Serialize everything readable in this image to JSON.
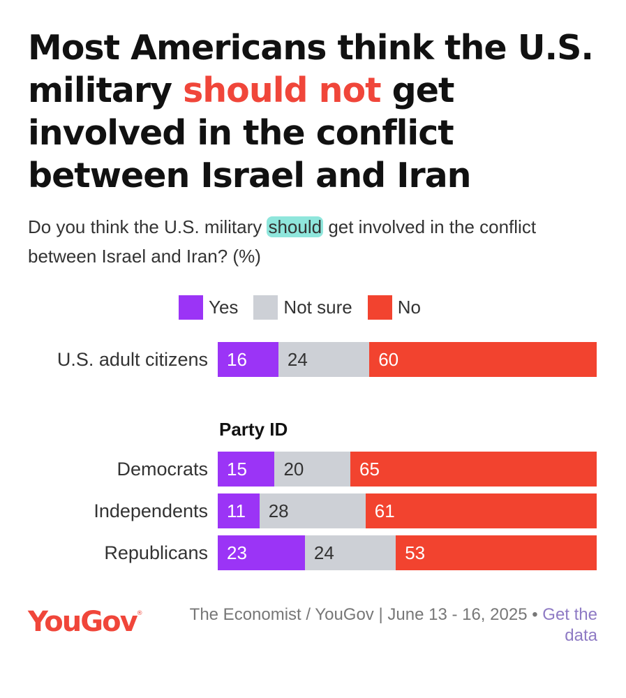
{
  "chart_data": {
    "type": "bar",
    "orientation": "horizontal",
    "stacked": true,
    "title_parts": [
      "Most Americans think the U.S. military ",
      "should not",
      " get involved in the conflict between Israel and Iran"
    ],
    "subtitle_parts": [
      "Do you think the U.S. military ",
      "should",
      " get involved in the conflict between Israel and Iran? (%)"
    ],
    "legend": [
      {
        "name": "Yes",
        "color": "#9b34f6"
      },
      {
        "name": "Not sure",
        "color": "#cdd0d6"
      },
      {
        "name": "No",
        "color": "#f2432f"
      }
    ],
    "categories": [
      "U.S. adult citizens",
      "Democrats",
      "Independents",
      "Republicans"
    ],
    "group_label": "Party ID",
    "series": [
      {
        "name": "Yes",
        "values": [
          16,
          15,
          11,
          23
        ]
      },
      {
        "name": "Not sure",
        "values": [
          24,
          20,
          28,
          24
        ]
      },
      {
        "name": "No",
        "values": [
          60,
          65,
          61,
          53
        ]
      }
    ],
    "xlim": [
      0,
      100
    ],
    "legend_position": "top"
  },
  "footer": {
    "logo": "YouGov",
    "logo_mark": "®",
    "source": "The Economist / YouGov | June 13 - 16, 2025 • ",
    "link": "Get the data"
  }
}
